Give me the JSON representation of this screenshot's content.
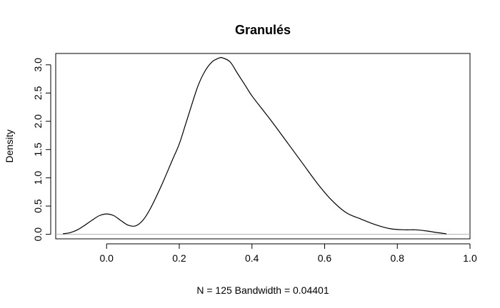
{
  "chart_data": {
    "type": "line",
    "title": "Granulés",
    "xlabel": "N = 125   Bandwidth = 0.04401",
    "ylabel": "Density",
    "xlim": [
      -0.14,
      1.0
    ],
    "ylim": [
      -0.08,
      3.2
    ],
    "x_ticks": [
      0.0,
      0.2,
      0.4,
      0.6,
      0.8,
      1.0
    ],
    "x_tick_labels": [
      "0.0",
      "0.2",
      "0.4",
      "0.6",
      "0.8",
      "1.0"
    ],
    "y_ticks": [
      0.0,
      0.5,
      1.0,
      1.5,
      2.0,
      2.5,
      3.0
    ],
    "y_tick_labels": [
      "0.0",
      "0.5",
      "1.0",
      "1.5",
      "2.0",
      "2.5",
      "3.0"
    ],
    "zero_line": true,
    "grid": false,
    "series": [
      {
        "color": "#000000",
        "x": [
          -0.12,
          -0.1,
          -0.08,
          -0.06,
          -0.04,
          -0.02,
          0.0,
          0.02,
          0.04,
          0.06,
          0.08,
          0.1,
          0.12,
          0.15,
          0.18,
          0.2,
          0.22,
          0.25,
          0.27,
          0.29,
          0.31,
          0.32,
          0.34,
          0.36,
          0.38,
          0.4,
          0.43,
          0.46,
          0.5,
          0.54,
          0.58,
          0.62,
          0.66,
          0.7,
          0.74,
          0.78,
          0.82,
          0.85,
          0.88,
          0.91,
          0.935
        ],
        "y": [
          0.01,
          0.03,
          0.08,
          0.16,
          0.25,
          0.33,
          0.36,
          0.33,
          0.24,
          0.16,
          0.15,
          0.25,
          0.45,
          0.85,
          1.3,
          1.6,
          2.0,
          2.6,
          2.88,
          3.05,
          3.12,
          3.12,
          3.05,
          2.85,
          2.65,
          2.45,
          2.2,
          1.95,
          1.6,
          1.25,
          0.9,
          0.6,
          0.38,
          0.27,
          0.17,
          0.1,
          0.08,
          0.08,
          0.06,
          0.03,
          0.01
        ]
      }
    ]
  }
}
